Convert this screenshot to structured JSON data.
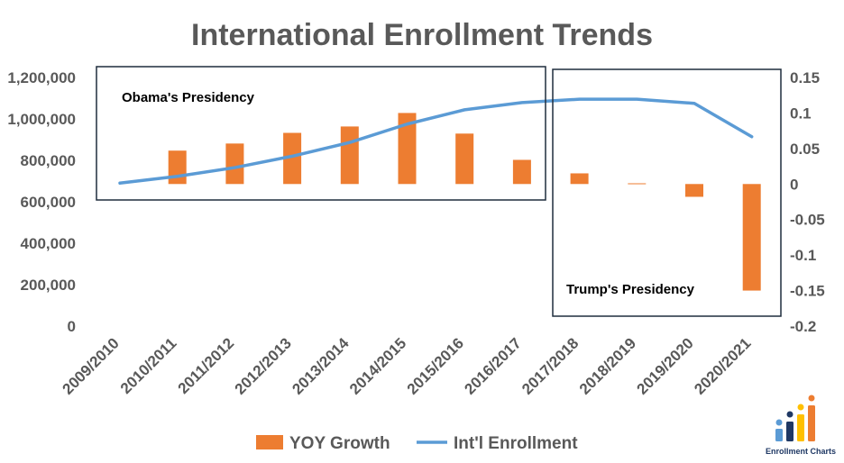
{
  "chart_data": {
    "type": "bar+line",
    "title": "International Enrollment Trends",
    "categories": [
      "2009/2010",
      "2010/2011",
      "2011/2012",
      "2012/2013",
      "2013/2014",
      "2014/2015",
      "2015/2016",
      "2016/2017",
      "2017/2018",
      "2018/2019",
      "2019/2020",
      "2020/2021"
    ],
    "series": [
      {
        "name": "YOY Growth",
        "kind": "bar",
        "axis": "right",
        "color": "#ed7d31",
        "values": [
          null,
          0.047,
          0.057,
          0.072,
          0.081,
          0.1,
          0.071,
          0.034,
          0.015,
          0.001,
          -0.018,
          -0.15
        ]
      },
      {
        "name": "Int'l Enrollment",
        "kind": "line",
        "axis": "left",
        "color": "#5b9bd5",
        "values": [
          690000,
          723000,
          765000,
          820000,
          886000,
          975000,
          1044000,
          1079000,
          1095000,
          1095000,
          1075000,
          914000
        ]
      }
    ],
    "left_axis": {
      "min": 0,
      "max": 1200000,
      "step": 200000,
      "tick_labels": [
        "0",
        "200,000",
        "400,000",
        "600,000",
        "800,000",
        "1,000,000",
        "1,200,000"
      ]
    },
    "right_axis": {
      "min": -0.2,
      "max": 0.15,
      "step": 0.05,
      "tick_labels": [
        "-0.2",
        "-0.15",
        "-0.1",
        "-0.05",
        "0",
        "0.05",
        "0.1",
        "0.15"
      ]
    },
    "annotations": [
      {
        "label": "Obama's Presidency",
        "from": "2009/2010",
        "to": "2016/2017"
      },
      {
        "label": "Trump's Presidency",
        "from": "2017/2018",
        "to": "2020/2021"
      }
    ],
    "legend_position": "bottom",
    "grid": false
  },
  "logo": {
    "text": "Enrollment Charts",
    "colors": [
      "#5b9bd5",
      "#1f3864",
      "#ffc000",
      "#ed7d31"
    ]
  }
}
